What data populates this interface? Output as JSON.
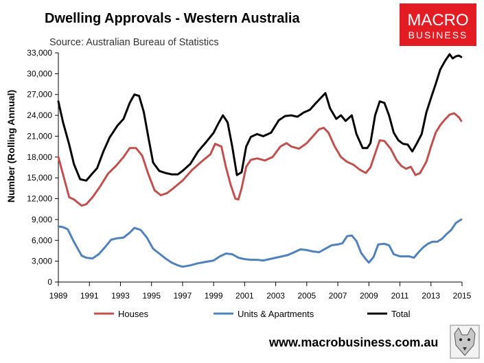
{
  "chart_data": {
    "type": "line",
    "title": "Dwelling Approvals - Western Australia",
    "subtitle": "Source: Australian Bureau of Statistics",
    "ylabel": "Number (Rolling Annual)",
    "xlabel": "",
    "xlim": [
      1989,
      2015
    ],
    "ylim": [
      0,
      33000
    ],
    "yticks": [
      0,
      3000,
      6000,
      9000,
      12000,
      15000,
      18000,
      21000,
      24000,
      27000,
      30000,
      33000
    ],
    "ytick_labels": [
      "0",
      "3,000",
      "6,000",
      "9,000",
      "12,000",
      "15,000",
      "18,000",
      "21,000",
      "24,000",
      "27,000",
      "30,000",
      "33,000"
    ],
    "xticks": [
      1989,
      1991,
      1993,
      1995,
      1997,
      1999,
      2001,
      2003,
      2005,
      2007,
      2009,
      2011,
      2013,
      2015
    ],
    "xtick_labels": [
      "1989",
      "1991",
      "1993",
      "1995",
      "1997",
      "1999",
      "2001",
      "2003",
      "2005",
      "2007",
      "2009",
      "2011",
      "2013",
      "2015"
    ],
    "legend_position": "bottom",
    "series": [
      {
        "name": "Houses",
        "color": "#c0504d",
        "x": [
          1989.0,
          1989.3,
          1989.7,
          1990.0,
          1990.5,
          1990.8,
          1991.2,
          1991.7,
          1992.2,
          1992.7,
          1993.2,
          1993.6,
          1994.0,
          1994.4,
          1994.8,
          1995.2,
          1995.6,
          1996.0,
          1996.4,
          1997.0,
          1997.6,
          1998.2,
          1998.8,
          1999.1,
          1999.5,
          1999.8,
          2000.1,
          2000.4,
          2000.6,
          2000.8,
          2001.1,
          2001.4,
          2001.8,
          2002.3,
          2002.8,
          2003.3,
          2003.7,
          2004.0,
          2004.5,
          2005.0,
          2005.4,
          2005.8,
          2006.1,
          2006.4,
          2006.8,
          2007.2,
          2007.6,
          2008.0,
          2008.4,
          2008.8,
          2009.1,
          2009.4,
          2009.7,
          2010.0,
          2010.4,
          2010.8,
          2011.1,
          2011.4,
          2011.7,
          2012.0,
          2012.3,
          2012.7,
          2013.0,
          2013.3,
          2013.6,
          2013.9,
          2014.2,
          2014.5,
          2014.8,
          2014.95
        ],
        "values": [
          18000,
          15500,
          12200,
          11900,
          11000,
          11200,
          12200,
          13800,
          15600,
          16700,
          18000,
          19300,
          19300,
          18200,
          15500,
          13200,
          12500,
          12800,
          13500,
          14600,
          16100,
          17300,
          18400,
          19900,
          19500,
          16500,
          14000,
          12000,
          11900,
          13500,
          16600,
          17600,
          17800,
          17500,
          18000,
          19500,
          20000,
          19500,
          19200,
          20000,
          21000,
          22000,
          22200,
          21500,
          19500,
          18000,
          17300,
          16900,
          16200,
          15700,
          16500,
          18500,
          20400,
          20300,
          19200,
          17500,
          16700,
          16300,
          16600,
          15400,
          15700,
          17300,
          19500,
          21500,
          22600,
          23400,
          24100,
          24300,
          23700,
          23200
        ]
      },
      {
        "name": "Units & Apartments",
        "color": "#4f81bd",
        "x": [
          1989.0,
          1989.3,
          1989.6,
          1990.0,
          1990.5,
          1990.8,
          1991.2,
          1991.6,
          1992.0,
          1992.4,
          1992.8,
          1993.2,
          1993.6,
          1993.9,
          1994.3,
          1994.7,
          1995.1,
          1995.5,
          1995.9,
          1996.3,
          1996.7,
          1997.0,
          1997.5,
          1998.0,
          1998.5,
          1999.0,
          1999.4,
          1999.8,
          2000.2,
          2000.6,
          2001.0,
          2001.4,
          2001.8,
          2002.2,
          2002.6,
          2003.0,
          2003.4,
          2003.8,
          2004.2,
          2004.6,
          2005.0,
          2005.4,
          2005.8,
          2006.2,
          2006.6,
          2007.0,
          2007.3,
          2007.6,
          2007.9,
          2008.2,
          2008.5,
          2008.8,
          2009.0,
          2009.3,
          2009.6,
          2010.0,
          2010.3,
          2010.6,
          2011.0,
          2011.3,
          2011.6,
          2011.9,
          2012.2,
          2012.5,
          2012.8,
          2013.1,
          2013.4,
          2013.7,
          2014.0,
          2014.3,
          2014.6,
          2014.95
        ],
        "values": [
          8000,
          7900,
          7600,
          5800,
          3800,
          3500,
          3400,
          4000,
          5000,
          6100,
          6300,
          6400,
          7100,
          7800,
          7500,
          6400,
          4800,
          4100,
          3400,
          2800,
          2400,
          2200,
          2400,
          2700,
          2900,
          3100,
          3700,
          4100,
          4000,
          3500,
          3300,
          3200,
          3200,
          3100,
          3300,
          3500,
          3700,
          3900,
          4300,
          4700,
          4600,
          4400,
          4300,
          4800,
          5300,
          5400,
          5600,
          6600,
          6700,
          5900,
          4200,
          3300,
          2800,
          3600,
          5400,
          5500,
          5300,
          4000,
          3700,
          3700,
          3700,
          3500,
          4300,
          5000,
          5500,
          5800,
          5800,
          6200,
          6900,
          7500,
          8500,
          9000
        ]
      },
      {
        "name": "Total",
        "color": "#000000",
        "x": [
          1989.0,
          1989.3,
          1989.7,
          1990.0,
          1990.4,
          1990.8,
          1991.1,
          1991.5,
          1991.9,
          1992.3,
          1992.8,
          1993.2,
          1993.6,
          1993.9,
          1994.2,
          1994.5,
          1994.8,
          1995.1,
          1995.5,
          1995.9,
          1996.3,
          1996.7,
          1997.0,
          1997.5,
          1998.0,
          1998.5,
          1999.0,
          1999.3,
          1999.6,
          1999.9,
          2000.2,
          2000.5,
          2000.8,
          2001.1,
          2001.4,
          2001.8,
          2002.2,
          2002.7,
          2003.2,
          2003.6,
          2004.0,
          2004.4,
          2004.8,
          2005.2,
          2005.6,
          2005.9,
          2006.2,
          2006.5,
          2006.9,
          2007.2,
          2007.5,
          2007.9,
          2008.2,
          2008.6,
          2008.9,
          2009.1,
          2009.4,
          2009.7,
          2010.0,
          2010.3,
          2010.6,
          2010.9,
          2011.2,
          2011.5,
          2011.8,
          2012.1,
          2012.4,
          2012.7,
          2013.0,
          2013.3,
          2013.6,
          2013.9,
          2014.2,
          2014.4,
          2014.6,
          2014.8,
          2014.95
        ],
        "values": [
          26000,
          23000,
          19800,
          17000,
          14800,
          14600,
          15400,
          16400,
          18800,
          20800,
          22500,
          23500,
          25800,
          27000,
          26800,
          24500,
          20800,
          17200,
          16000,
          15700,
          15500,
          15500,
          16000,
          17000,
          18800,
          20100,
          21500,
          22800,
          24000,
          23000,
          19500,
          15400,
          15800,
          19500,
          20900,
          21300,
          21000,
          21500,
          23300,
          23900,
          24000,
          23800,
          24400,
          24800,
          25800,
          26500,
          27200,
          25000,
          23500,
          24000,
          23200,
          24000,
          21300,
          19300,
          19300,
          20000,
          24000,
          26000,
          25800,
          24000,
          21500,
          20400,
          19900,
          19800,
          18800,
          20000,
          21300,
          24400,
          26500,
          28500,
          30600,
          31800,
          32800,
          32200,
          32500,
          32600,
          32400
        ]
      }
    ]
  },
  "logo": {
    "line1": "MACRO",
    "line2": "BUSINESS",
    "color": "#e31b23"
  },
  "footer": {
    "url": "www.macrobusiness.com.au"
  },
  "icons": {
    "badge": "wolf-icon"
  }
}
